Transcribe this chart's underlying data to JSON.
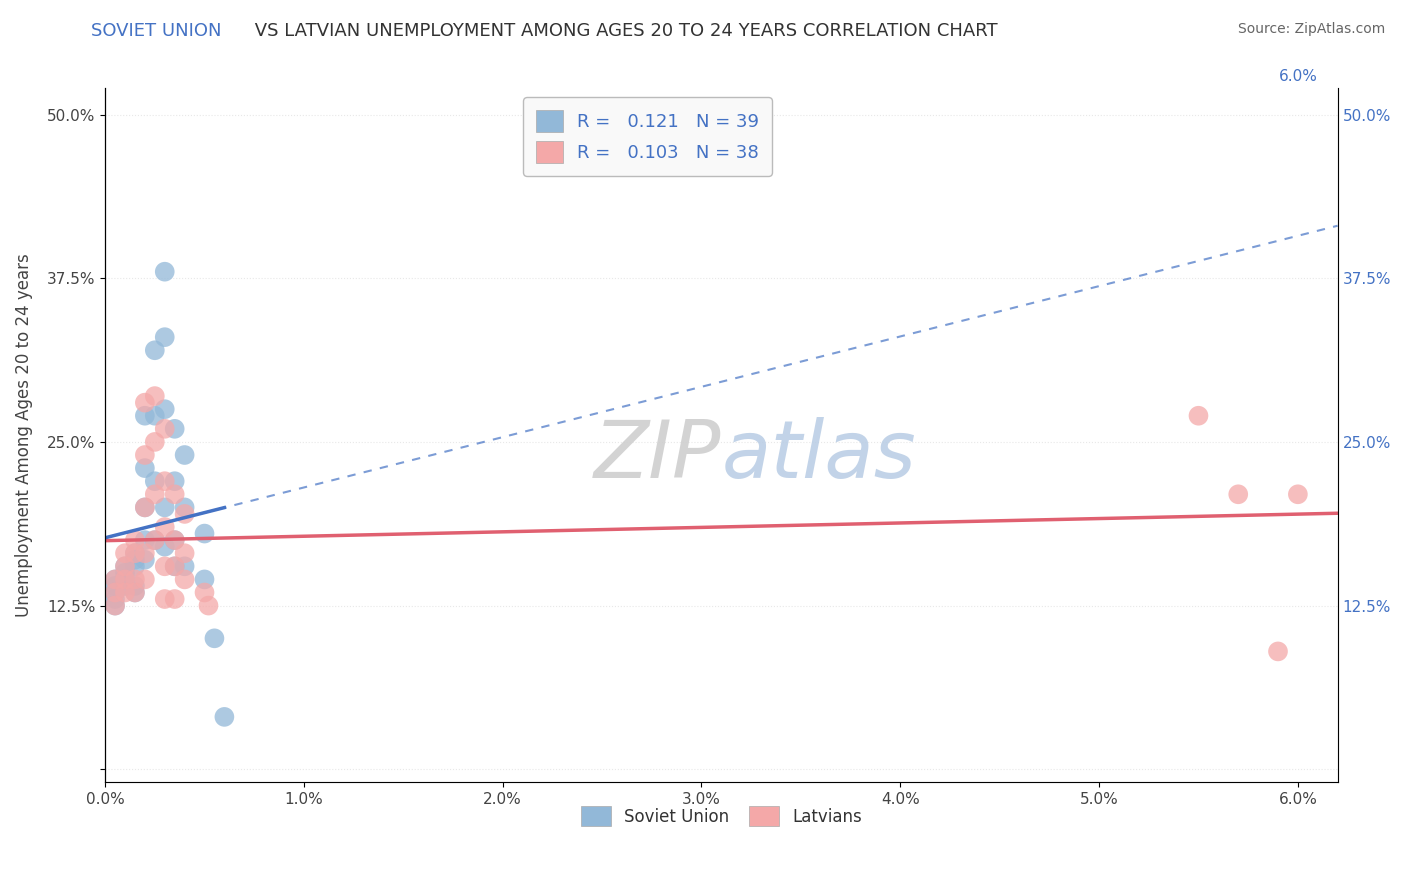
{
  "source_text": "Source: ZipAtlas.com",
  "ylabel": "Unemployment Among Ages 20 to 24 years",
  "xlim": [
    0.0,
    0.062
  ],
  "ylim": [
    -0.01,
    0.52
  ],
  "xticks": [
    0.0,
    0.01,
    0.02,
    0.03,
    0.04,
    0.05,
    0.06
  ],
  "xticklabels": [
    "0.0%",
    "1.0%",
    "2.0%",
    "3.0%",
    "4.0%",
    "5.0%",
    "6.0%"
  ],
  "yticks": [
    0.0,
    0.125,
    0.25,
    0.375,
    0.5
  ],
  "yticklabels": [
    "",
    "12.5%",
    "25.0%",
    "37.5%",
    "50.0%"
  ],
  "soviet_color": "#92b8d8",
  "latvian_color": "#f4a8a8",
  "soviet_line_color": "#4472c4",
  "latvian_line_color": "#e06070",
  "soviet_R": 0.121,
  "soviet_N": 39,
  "latvian_R": 0.103,
  "latvian_N": 38,
  "soviet_scatter_x": [
    0.0005,
    0.0005,
    0.0005,
    0.0005,
    0.0005,
    0.001,
    0.001,
    0.001,
    0.001,
    0.0015,
    0.0015,
    0.0015,
    0.0015,
    0.0015,
    0.002,
    0.002,
    0.002,
    0.002,
    0.002,
    0.0025,
    0.0025,
    0.0025,
    0.0025,
    0.003,
    0.003,
    0.003,
    0.003,
    0.003,
    0.0035,
    0.0035,
    0.0035,
    0.0035,
    0.004,
    0.004,
    0.004,
    0.005,
    0.005,
    0.0055,
    0.006
  ],
  "soviet_scatter_y": [
    0.145,
    0.14,
    0.135,
    0.13,
    0.125,
    0.155,
    0.15,
    0.145,
    0.14,
    0.165,
    0.16,
    0.155,
    0.14,
    0.135,
    0.27,
    0.23,
    0.2,
    0.175,
    0.16,
    0.32,
    0.27,
    0.22,
    0.175,
    0.38,
    0.33,
    0.275,
    0.2,
    0.17,
    0.26,
    0.22,
    0.175,
    0.155,
    0.24,
    0.2,
    0.155,
    0.18,
    0.145,
    0.1,
    0.04
  ],
  "latvian_scatter_x": [
    0.0005,
    0.0005,
    0.0005,
    0.001,
    0.001,
    0.001,
    0.001,
    0.0015,
    0.0015,
    0.0015,
    0.0015,
    0.002,
    0.002,
    0.002,
    0.002,
    0.002,
    0.0025,
    0.0025,
    0.0025,
    0.0025,
    0.003,
    0.003,
    0.003,
    0.003,
    0.003,
    0.0035,
    0.0035,
    0.0035,
    0.0035,
    0.004,
    0.004,
    0.004,
    0.005,
    0.0052,
    0.055,
    0.057,
    0.059,
    0.06
  ],
  "latvian_scatter_y": [
    0.145,
    0.135,
    0.125,
    0.165,
    0.155,
    0.145,
    0.135,
    0.175,
    0.165,
    0.145,
    0.135,
    0.28,
    0.24,
    0.2,
    0.165,
    0.145,
    0.285,
    0.25,
    0.21,
    0.175,
    0.26,
    0.22,
    0.185,
    0.155,
    0.13,
    0.21,
    0.175,
    0.155,
    0.13,
    0.195,
    0.165,
    0.145,
    0.135,
    0.125,
    0.27,
    0.21,
    0.09,
    0.21
  ],
  "background_color": "#ffffff",
  "grid_color": "#e8e8e8"
}
